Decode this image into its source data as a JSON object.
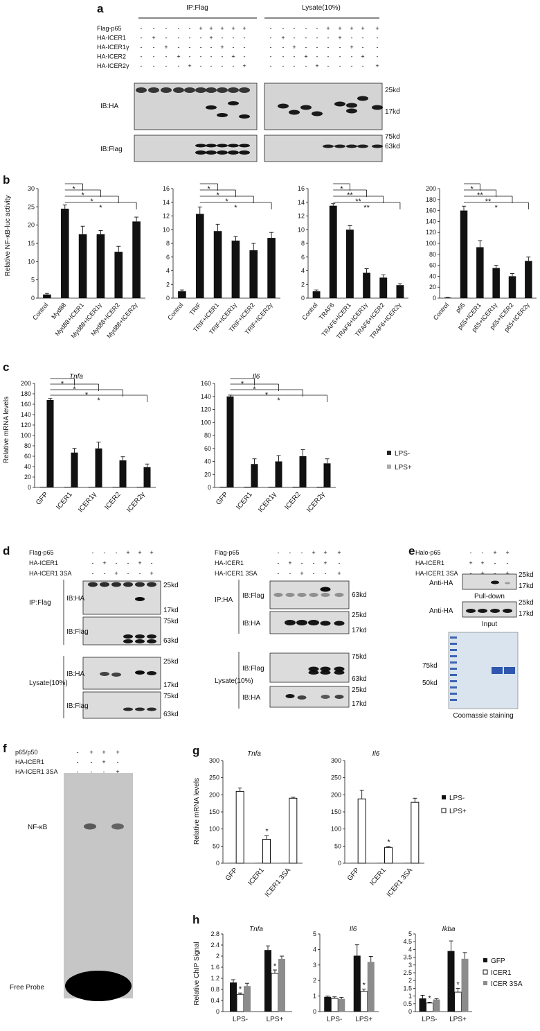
{
  "panel_a": {
    "letter": "a",
    "ip_header": "IP:Flag",
    "lysate_header": "Lysate(10%)",
    "rows": [
      {
        "label": "Flag-p65",
        "signs": [
          "-",
          "-",
          "-",
          "-",
          "-",
          "+",
          "+",
          "+",
          "+",
          "+"
        ]
      },
      {
        "label": "HA-ICER1",
        "signs": [
          "-",
          "+",
          "-",
          "-",
          "-",
          "-",
          "+",
          "-",
          "-",
          "-"
        ]
      },
      {
        "label": "HA-ICER1γ",
        "signs": [
          "-",
          "-",
          "+",
          "-",
          "-",
          "-",
          "-",
          "+",
          "-",
          "-"
        ]
      },
      {
        "label": "HA-ICER2",
        "signs": [
          "-",
          "-",
          "-",
          "+",
          "-",
          "-",
          "-",
          "-",
          "+",
          "-"
        ]
      },
      {
        "label": "HA-ICER2γ",
        "signs": [
          "-",
          "-",
          "-",
          "-",
          "+",
          "-",
          "-",
          "-",
          "-",
          "+"
        ]
      }
    ],
    "blot_ha": "IB:HA",
    "blot_flag": "IB:Flag",
    "markers_ha": [
      "25kd",
      "17kd"
    ],
    "markers_flag": [
      "75kd",
      "63kd"
    ]
  },
  "panel_b": {
    "letter": "b",
    "ylabel": "Relative NF-κB-luc activity",
    "chart_data": [
      {
        "type": "bar",
        "categories": [
          "Control",
          "Myd88",
          "Myd88+ICER1",
          "Myd88+ICER1γ",
          "Myd88+ICER2",
          "Myd88+ICER2γ"
        ],
        "values": [
          1,
          24.5,
          17.5,
          17.5,
          12.7,
          21
        ],
        "errors": [
          0.3,
          1,
          2.2,
          1,
          1.5,
          1.2
        ],
        "yticks": [
          "0",
          "5",
          "10",
          "15",
          "20",
          "25",
          "30"
        ],
        "ylim": [
          0,
          30
        ],
        "sig": [
          "*",
          "*",
          "*",
          "*"
        ]
      },
      {
        "type": "bar",
        "categories": [
          "Control",
          "TRIF",
          "TRIF+ICER1",
          "TRIF+ICER1γ",
          "TRIF+ICER2",
          "TRIF+ICER2γ"
        ],
        "values": [
          1,
          12.3,
          9.8,
          8.4,
          7,
          8.8
        ],
        "errors": [
          0.2,
          1,
          1,
          0.6,
          1,
          0.8
        ],
        "yticks": [
          "0",
          "2",
          "4",
          "6",
          "8",
          "10",
          "12",
          "14",
          "16"
        ],
        "ylim": [
          0,
          16
        ],
        "sig": [
          "*",
          "*",
          "*",
          "*"
        ]
      },
      {
        "type": "bar",
        "categories": [
          "Control",
          "TRAF6",
          "TRAF6+ICER1",
          "TRAF6+ICER1γ",
          "TRAF6+ICER2",
          "TRAF6+ICER2γ"
        ],
        "values": [
          1,
          13.5,
          10,
          3.7,
          3,
          1.9
        ],
        "errors": [
          0.2,
          0.3,
          0.6,
          0.6,
          0.4,
          0.2
        ],
        "yticks": [
          "0",
          "2",
          "4",
          "6",
          "8",
          "10",
          "12",
          "14",
          "16"
        ],
        "ylim": [
          0,
          16
        ],
        "sig": [
          "*",
          "**",
          "**",
          "**"
        ]
      },
      {
        "type": "bar",
        "categories": [
          "Control",
          "p65",
          "p65+ICER1",
          "p65+ICER1γ",
          "p65+ICER2",
          "p65+ICER2γ"
        ],
        "values": [
          1,
          160,
          93,
          55,
          40,
          68
        ],
        "errors": [
          0.5,
          8,
          12,
          5,
          5,
          7
        ],
        "yticks": [
          "0",
          "20",
          "40",
          "60",
          "80",
          "100",
          "120",
          "140",
          "160",
          "180",
          "200"
        ],
        "ylim": [
          0,
          200
        ],
        "sig": [
          "*",
          "**",
          "**",
          "*"
        ]
      }
    ]
  },
  "panel_c": {
    "letter": "c",
    "ylabel": "Relative mRNA levels",
    "legend": [
      "LPS-",
      "LPS+"
    ],
    "chart_data": [
      {
        "type": "bar",
        "title": "Tnfa",
        "categories": [
          "GFP",
          "ICER1",
          "ICER1γ",
          "ICER2",
          "ICER2γ"
        ],
        "series": [
          {
            "name": "LPS-",
            "values": [
              1,
              1,
              1,
              1,
              1
            ]
          },
          {
            "name": "LPS+",
            "values": [
              168,
              67,
              75,
              52,
              39
            ]
          }
        ],
        "errors": [
          3,
          8,
          12,
          7,
          6
        ],
        "yticks": [
          "0",
          "20",
          "40",
          "60",
          "80",
          "100",
          "120",
          "140",
          "160",
          "180",
          "200"
        ],
        "ylim": [
          0,
          200
        ],
        "sig": [
          "*",
          "*",
          "*",
          "*"
        ]
      },
      {
        "type": "bar",
        "title": "Il6",
        "categories": [
          "GFP",
          "ICER1",
          "ICER1γ",
          "ICER2",
          "ICER2γ"
        ],
        "series": [
          {
            "name": "LPS-",
            "values": [
              1,
              1,
              1,
              1,
              1
            ]
          },
          {
            "name": "LPS+",
            "values": [
              140,
              36,
              40,
              48,
              37
            ]
          }
        ],
        "errors": [
          2,
          8,
          9,
          10,
          7
        ],
        "yticks": [
          "0",
          "20",
          "40",
          "60",
          "80",
          "100",
          "120",
          "140",
          "160"
        ],
        "ylim": [
          0,
          160
        ],
        "sig": [
          "*",
          "*",
          "*",
          "*"
        ]
      }
    ]
  },
  "panel_d": {
    "letter": "d",
    "left": {
      "rows": [
        {
          "label": "Flag-p65",
          "signs": [
            "-",
            "-",
            "-",
            "+",
            "+",
            "+"
          ]
        },
        {
          "label": "HA-ICER1",
          "signs": [
            "-",
            "+",
            "-",
            "-",
            "+",
            "-"
          ]
        },
        {
          "label": "HA-ICER1 3SA",
          "signs": [
            "-",
            "-",
            "+",
            "-",
            "-",
            "+"
          ]
        }
      ],
      "group1": "IP:Flag",
      "group2": "Lysate(10%)",
      "blots": [
        "IB:HA",
        "IB:Flag",
        "IB:HA",
        "IB:Flag"
      ],
      "markers": [
        [
          "25kd",
          "17kd"
        ],
        [
          "75kd",
          "63kd"
        ],
        [
          "25kd",
          "17kd"
        ],
        [
          "75kd",
          "63kd"
        ]
      ]
    },
    "right": {
      "rows": [
        {
          "label": "Flag-p65",
          "signs": [
            "-",
            "-",
            "-",
            "+",
            "+",
            "+"
          ]
        },
        {
          "label": "HA-ICER1",
          "signs": [
            "-",
            "+",
            "-",
            "-",
            "+",
            "-"
          ]
        },
        {
          "label": "HA-ICER1 3SA",
          "signs": [
            "-",
            "-",
            "+",
            "-",
            "-",
            "+"
          ]
        }
      ],
      "group1": "IP:HA",
      "group2": "Lysate(10%)",
      "blots": [
        "IB:Flag",
        "IB:HA",
        "IB:Flag",
        "IB:HA"
      ],
      "markers": [
        [
          "63kd"
        ],
        [
          "25kd",
          "17kd"
        ],
        [
          "75kd",
          "63kd"
        ],
        [
          "25kd",
          "17kd"
        ]
      ]
    }
  },
  "panel_e": {
    "letter": "e",
    "rows": [
      {
        "label": "Halo-p65",
        "signs": [
          "-",
          "-",
          "+",
          "+"
        ]
      },
      {
        "label": "HA-ICER1",
        "signs": [
          "+",
          "+",
          "-",
          "-"
        ]
      },
      {
        "label": "HA-ICER1 3SA",
        "signs": [
          "-",
          "+",
          "-",
          "+"
        ]
      }
    ],
    "anti_ha": "Anti-HA",
    "pulldown": "Pull-down",
    "input": "Input",
    "markers": [
      "25kd",
      "17kd"
    ],
    "gel_markers": [
      "75kd",
      "50kd"
    ],
    "gel_caption": "Coomassie staining"
  },
  "panel_f": {
    "letter": "f",
    "rows": [
      {
        "label": "p65/p50",
        "signs": [
          "-",
          "+",
          "+",
          "+"
        ]
      },
      {
        "label": "HA-ICER1",
        "signs": [
          "-",
          "-",
          "+",
          "-"
        ]
      },
      {
        "label": "HA-ICER1 3SA",
        "signs": [
          "-",
          "-",
          "-",
          "+"
        ]
      }
    ],
    "nfkb": "NF-κB",
    "free_probe": "Free Probe"
  },
  "panel_g": {
    "letter": "g",
    "ylabel": "Relative mRNA levels",
    "legend": [
      "LPS-",
      "LPS+"
    ],
    "chart_data": [
      {
        "type": "bar",
        "title": "Tnfa",
        "categories": [
          "GFP",
          "ICER1",
          "ICER1 3SA"
        ],
        "series": [
          {
            "name": "LPS-",
            "values": [
              1,
              1,
              1
            ]
          },
          {
            "name": "LPS+",
            "values": [
              210,
              70,
              190
            ]
          }
        ],
        "errors": [
          10,
          10,
          3
        ],
        "yticks": [
          "0",
          "50",
          "100",
          "150",
          "200",
          "250",
          "300"
        ],
        "ylim": [
          0,
          300
        ],
        "sig": [
          "",
          "*",
          ""
        ]
      },
      {
        "type": "bar",
        "title": "Il6",
        "categories": [
          "GFP",
          "ICER1",
          "ICER1 3SA"
        ],
        "series": [
          {
            "name": "LPS-",
            "values": [
              1,
              1,
              1
            ]
          },
          {
            "name": "LPS+",
            "values": [
              188,
              46,
              178
            ]
          }
        ],
        "errors": [
          25,
          3,
          12
        ],
        "yticks": [
          "0",
          "50",
          "100",
          "150",
          "200",
          "250",
          "300"
        ],
        "ylim": [
          0,
          300
        ],
        "sig": [
          "",
          "*",
          ""
        ]
      }
    ]
  },
  "panel_h": {
    "letter": "h",
    "ylabel": "Relative ChIP Signal",
    "legend": [
      "GFP",
      "ICER1",
      "ICER 3SA"
    ],
    "colors": [
      "#111111",
      "#ffffff",
      "#8c8c8c"
    ],
    "chart_data": [
      {
        "type": "bar",
        "title": "Tnfa",
        "categories": [
          "LPS-",
          "LPS+"
        ],
        "series": [
          {
            "name": "GFP",
            "values": [
              1.05,
              2.22
            ]
          },
          {
            "name": "ICER1",
            "values": [
              0.62,
              1.38
            ]
          },
          {
            "name": "ICER 3SA",
            "values": [
              0.92,
              1.9
            ]
          }
        ],
        "errors": [
          [
            0.1,
            0.05,
            0.1
          ],
          [
            0.15,
            0.12,
            0.1
          ]
        ],
        "yticks": [
          "0",
          "0.4",
          "0.8",
          "1.2",
          "1.6",
          "2",
          "2.4",
          "2.8"
        ],
        "ylim": [
          0,
          2.8
        ],
        "sig": [
          "*",
          "*"
        ]
      },
      {
        "type": "bar",
        "title": "Il6",
        "categories": [
          "LPS-",
          "LPS+"
        ],
        "series": [
          {
            "name": "GFP",
            "values": [
              0.95,
              3.6
            ]
          },
          {
            "name": "ICER1",
            "values": [
              0.85,
              1.3
            ]
          },
          {
            "name": "ICER 3SA",
            "values": [
              0.82,
              3.2
            ]
          }
        ],
        "errors": [
          [
            0.05,
            0.1,
            0.1
          ],
          [
            0.7,
            0.15,
            0.35
          ]
        ],
        "yticks": [
          "0",
          "1",
          "2",
          "3",
          "4",
          "5"
        ],
        "ylim": [
          0,
          5
        ],
        "sig": [
          "",
          "*"
        ]
      },
      {
        "type": "bar",
        "title": "Ikba",
        "categories": [
          "LPS-",
          "LPS+"
        ],
        "series": [
          {
            "name": "GFP",
            "values": [
              0.85,
              3.9
            ]
          },
          {
            "name": "ICER1",
            "values": [
              0.55,
              1.25
            ]
          },
          {
            "name": "ICER 3SA",
            "values": [
              0.78,
              3.4
            ]
          }
        ],
        "errors": [
          [
            0.2,
            0.05,
            0.05
          ],
          [
            0.65,
            0.25,
            0.4
          ]
        ],
        "yticks": [
          "0",
          "0.5",
          "1",
          "1.5",
          "2",
          "2.5",
          "3",
          "3.5",
          "4",
          "4.5",
          "5"
        ],
        "ylim": [
          0,
          5
        ],
        "sig": [
          "*",
          "*"
        ]
      }
    ]
  }
}
